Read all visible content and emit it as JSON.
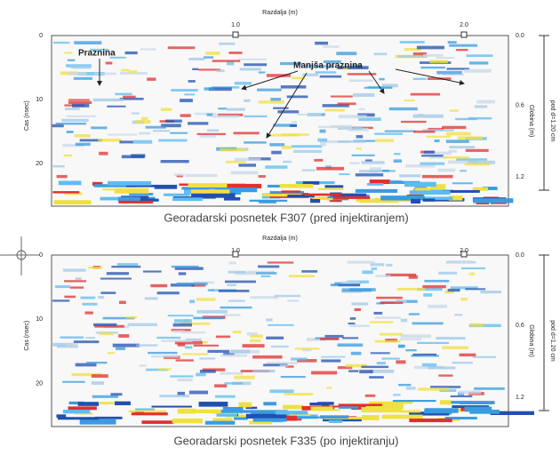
{
  "panels": [
    {
      "x_axis_label": "Razdalja (m)",
      "x_ticks": [
        "1.0",
        "2.0"
      ],
      "y_axis_label": "Cas (nsec)",
      "y_ticks": [
        "0",
        "10",
        "20"
      ],
      "depth_ticks": [
        "0.0",
        "0.6",
        "1.2"
      ],
      "depth_label": "Globina (m)",
      "depth_note": "pod d=1.20 cm",
      "annotations": [
        "Praznina",
        "Manjša praznina"
      ],
      "caption": "Georadarski posnetek F307 (pred injektiranjem)"
    },
    {
      "x_axis_label": "Razdalja (m)",
      "x_ticks": [
        "1.0",
        "2.0"
      ],
      "y_axis_label": "Cas (nsec)",
      "y_ticks": [
        "0",
        "10",
        "20"
      ],
      "depth_ticks": [
        "0.0",
        "0.6",
        "1.2"
      ],
      "depth_label": "Globina (m)",
      "depth_note": "pod d=1.20 cm",
      "caption": "Georadarski posnetek F335 (po injektiranju)"
    }
  ]
}
